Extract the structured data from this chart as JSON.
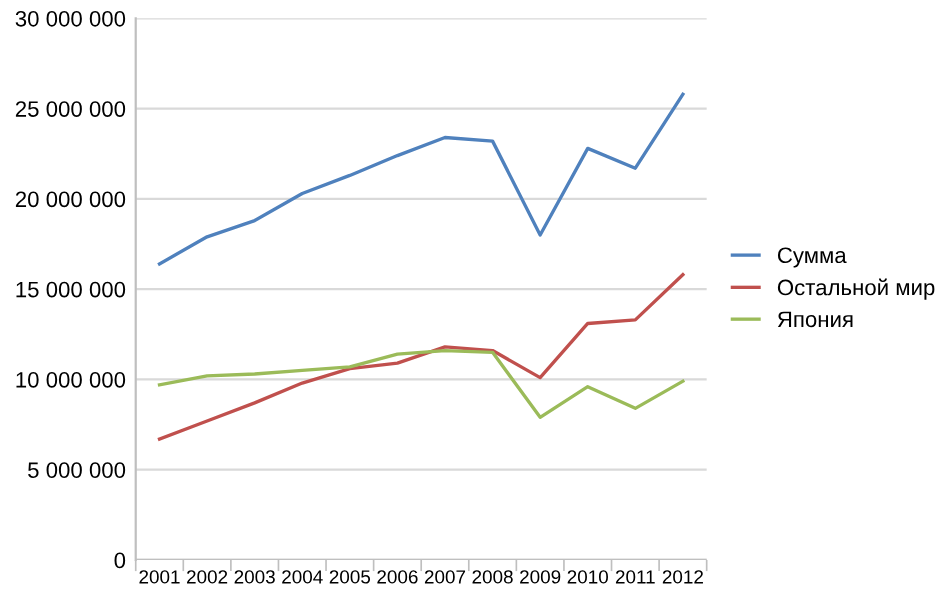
{
  "chart_data": {
    "type": "line",
    "categories": [
      "2001",
      "2002",
      "2003",
      "2004",
      "2005",
      "2006",
      "2007",
      "2008",
      "2009",
      "2010",
      "2011",
      "2012"
    ],
    "series": [
      {
        "name": "Сумма",
        "color": "#4f81bd",
        "values": [
          16400000,
          17900000,
          18800000,
          20300000,
          21300000,
          22400000,
          23400000,
          23200000,
          18000000,
          22800000,
          21700000,
          25800000
        ]
      },
      {
        "name": "Остальной мир",
        "color": "#c0504d",
        "values": [
          6700000,
          7700000,
          8700000,
          9800000,
          10600000,
          10900000,
          11800000,
          11600000,
          10100000,
          13100000,
          13300000,
          15800000
        ]
      },
      {
        "name": "Япония",
        "color": "#9bbb59",
        "values": [
          9700000,
          10200000,
          10300000,
          10500000,
          10700000,
          11400000,
          11600000,
          11500000,
          7900000,
          9600000,
          8400000,
          9900000
        ]
      }
    ],
    "ylim": [
      0,
      30000000
    ],
    "yticks": [
      {
        "value": 0,
        "label": "0"
      },
      {
        "value": 5000000,
        "label": "5 000 000"
      },
      {
        "value": 10000000,
        "label": "10 000 000"
      },
      {
        "value": 15000000,
        "label": "15 000 000"
      },
      {
        "value": 20000000,
        "label": "20 000 000"
      },
      {
        "value": 25000000,
        "label": "25 000 000"
      },
      {
        "value": 30000000,
        "label": "30 000 000"
      }
    ],
    "grid": "y",
    "legend": "right",
    "marker": "none",
    "line_style": "solid"
  }
}
